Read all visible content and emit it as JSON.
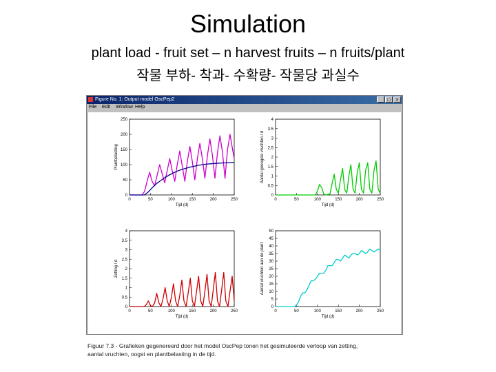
{
  "slide": {
    "title": "Simulation",
    "subtitle1": "plant load - fruit set – n harvest fruits – n fruits/plant",
    "subtitle2": "작물 부하- 착과- 수확량- 작물당 과실수"
  },
  "window": {
    "title": "Figure No. 1: Output model OscPep2",
    "menu": [
      "File",
      "Edit",
      "Window",
      "Help"
    ],
    "buttons": [
      "_",
      "□",
      "×"
    ]
  },
  "caption": {
    "line1": "Figuur 7.3 - Grafieken gegenereerd door het model OscPep tonen het gesimuleerde verloop van zetting,",
    "line2": "aantal vruchten, oogst en plantbelasting in de tijd."
  },
  "chart_data": [
    {
      "type": "line",
      "ylabel": "Plantbelasting",
      "xlabel": "Tijd (d)",
      "xlim": [
        0,
        250
      ],
      "ylim": [
        0,
        250
      ],
      "xticks": [
        "0",
        "50",
        "100",
        "150",
        "200",
        "250"
      ],
      "yticks": [
        "0",
        "50",
        "100",
        "150",
        "200",
        "250"
      ],
      "grid": false,
      "series": [
        {
          "color": "#cc00cc",
          "x": [
            0,
            30,
            36,
            42,
            48,
            54,
            60,
            66,
            72,
            78,
            84,
            90,
            96,
            102,
            108,
            114,
            120,
            126,
            132,
            138,
            144,
            150,
            156,
            162,
            168,
            174,
            180,
            186,
            192,
            198,
            204,
            210,
            216,
            222,
            228,
            234,
            240,
            246,
            250
          ],
          "y": [
            0,
            0,
            12,
            45,
            75,
            45,
            30,
            65,
            100,
            70,
            40,
            80,
            120,
            80,
            45,
            100,
            145,
            95,
            45,
            110,
            160,
            110,
            50,
            120,
            170,
            120,
            55,
            130,
            185,
            130,
            55,
            140,
            195,
            140,
            55,
            150,
            200,
            150,
            120
          ]
        },
        {
          "color": "#00008b",
          "x": [
            0,
            35,
            45,
            55,
            65,
            75,
            85,
            95,
            105,
            115,
            125,
            135,
            145,
            155,
            165,
            175,
            185,
            195,
            205,
            215,
            225,
            235,
            245,
            250
          ],
          "y": [
            0,
            0,
            10,
            25,
            38,
            48,
            58,
            66,
            73,
            79,
            84,
            88,
            92,
            95,
            98,
            100,
            102,
            103,
            104,
            105,
            106,
            106,
            107,
            107
          ]
        }
      ]
    },
    {
      "type": "line",
      "ylabel": "Aantal geoogste vruchten / d",
      "xlabel": "Tijd (d)",
      "xlim": [
        0,
        250
      ],
      "ylim": [
        0,
        4
      ],
      "xticks": [
        "0",
        "50",
        "100",
        "150",
        "200",
        "250"
      ],
      "yticks": [
        "0",
        "0.5",
        "1",
        "1.5",
        "2",
        "2.5",
        "3",
        "3.5",
        "4"
      ],
      "grid": false,
      "series": [
        {
          "color": "#00cc00",
          "x": [
            0,
            95,
            100,
            105,
            110,
            115,
            120,
            130,
            135,
            140,
            145,
            150,
            155,
            160,
            165,
            170,
            175,
            180,
            185,
            190,
            195,
            200,
            205,
            210,
            215,
            220,
            225,
            230,
            235,
            240,
            245,
            250
          ],
          "y": [
            0,
            0,
            0.2,
            0.55,
            0.4,
            0.05,
            0,
            0.05,
            0.6,
            1.1,
            0.3,
            0.1,
            0.8,
            1.4,
            0.3,
            0.1,
            1.0,
            1.6,
            0.3,
            0.1,
            1.2,
            1.7,
            0.3,
            0.1,
            1.3,
            1.7,
            0.3,
            0.1,
            1.3,
            1.8,
            0.3,
            0.1
          ]
        }
      ]
    },
    {
      "type": "line",
      "ylabel": "Zetting / d",
      "xlabel": "Tijd (d)",
      "xlim": [
        0,
        250
      ],
      "ylim": [
        0,
        4
      ],
      "xticks": [
        "0",
        "50",
        "100",
        "150",
        "200",
        "250"
      ],
      "yticks": [
        "0",
        "0.5",
        "1",
        "1.5",
        "2",
        "2.5",
        "3",
        "3.5",
        "4"
      ],
      "grid": false,
      "series": [
        {
          "color": "#cc0000",
          "x": [
            0,
            35,
            40,
            45,
            50,
            55,
            60,
            65,
            70,
            75,
            80,
            85,
            90,
            95,
            100,
            105,
            110,
            115,
            120,
            125,
            130,
            135,
            140,
            145,
            150,
            155,
            160,
            165,
            170,
            175,
            180,
            185,
            190,
            195,
            200,
            205,
            210,
            215,
            220,
            225,
            230,
            235,
            240,
            245,
            250
          ],
          "y": [
            0,
            0,
            0.1,
            0.3,
            0.05,
            0,
            0.2,
            0.7,
            0.2,
            0,
            0.4,
            1.0,
            0.3,
            0,
            0.5,
            1.2,
            0.3,
            0,
            0.6,
            1.4,
            0.3,
            0,
            0.7,
            1.5,
            0.3,
            0,
            0.8,
            1.6,
            0.3,
            0,
            0.8,
            1.7,
            0.3,
            0,
            0.9,
            1.8,
            0.3,
            0,
            0.9,
            1.8,
            0.3,
            0,
            0.8,
            1.6,
            0.3
          ]
        }
      ]
    },
    {
      "type": "line",
      "ylabel": "Aantal vruchten aan de plant",
      "xlabel": "Tijd (d)",
      "xlim": [
        0,
        250
      ],
      "ylim": [
        0,
        50
      ],
      "xticks": [
        "0",
        "50",
        "100",
        "150",
        "200",
        "250"
      ],
      "yticks": [
        "0",
        "5",
        "10",
        "15",
        "20",
        "25",
        "30",
        "35",
        "40",
        "45",
        "50"
      ],
      "grid": false,
      "series": [
        {
          "color": "#00cccc",
          "x": [
            0,
            45,
            50,
            55,
            60,
            65,
            70,
            75,
            80,
            85,
            90,
            95,
            100,
            105,
            110,
            115,
            120,
            125,
            130,
            135,
            140,
            145,
            150,
            155,
            160,
            165,
            170,
            175,
            180,
            185,
            190,
            195,
            200,
            205,
            210,
            215,
            220,
            225,
            230,
            235,
            240,
            245,
            250
          ],
          "y": [
            0,
            0,
            1,
            3,
            7,
            9,
            9,
            11,
            14,
            17,
            17,
            18,
            20,
            22,
            22,
            22,
            24,
            27,
            27,
            27,
            29,
            31,
            31,
            30,
            32,
            34,
            33,
            32,
            34,
            35,
            35,
            34,
            35,
            37,
            36,
            35,
            36,
            38,
            37,
            36,
            37,
            38,
            37
          ]
        }
      ]
    }
  ]
}
